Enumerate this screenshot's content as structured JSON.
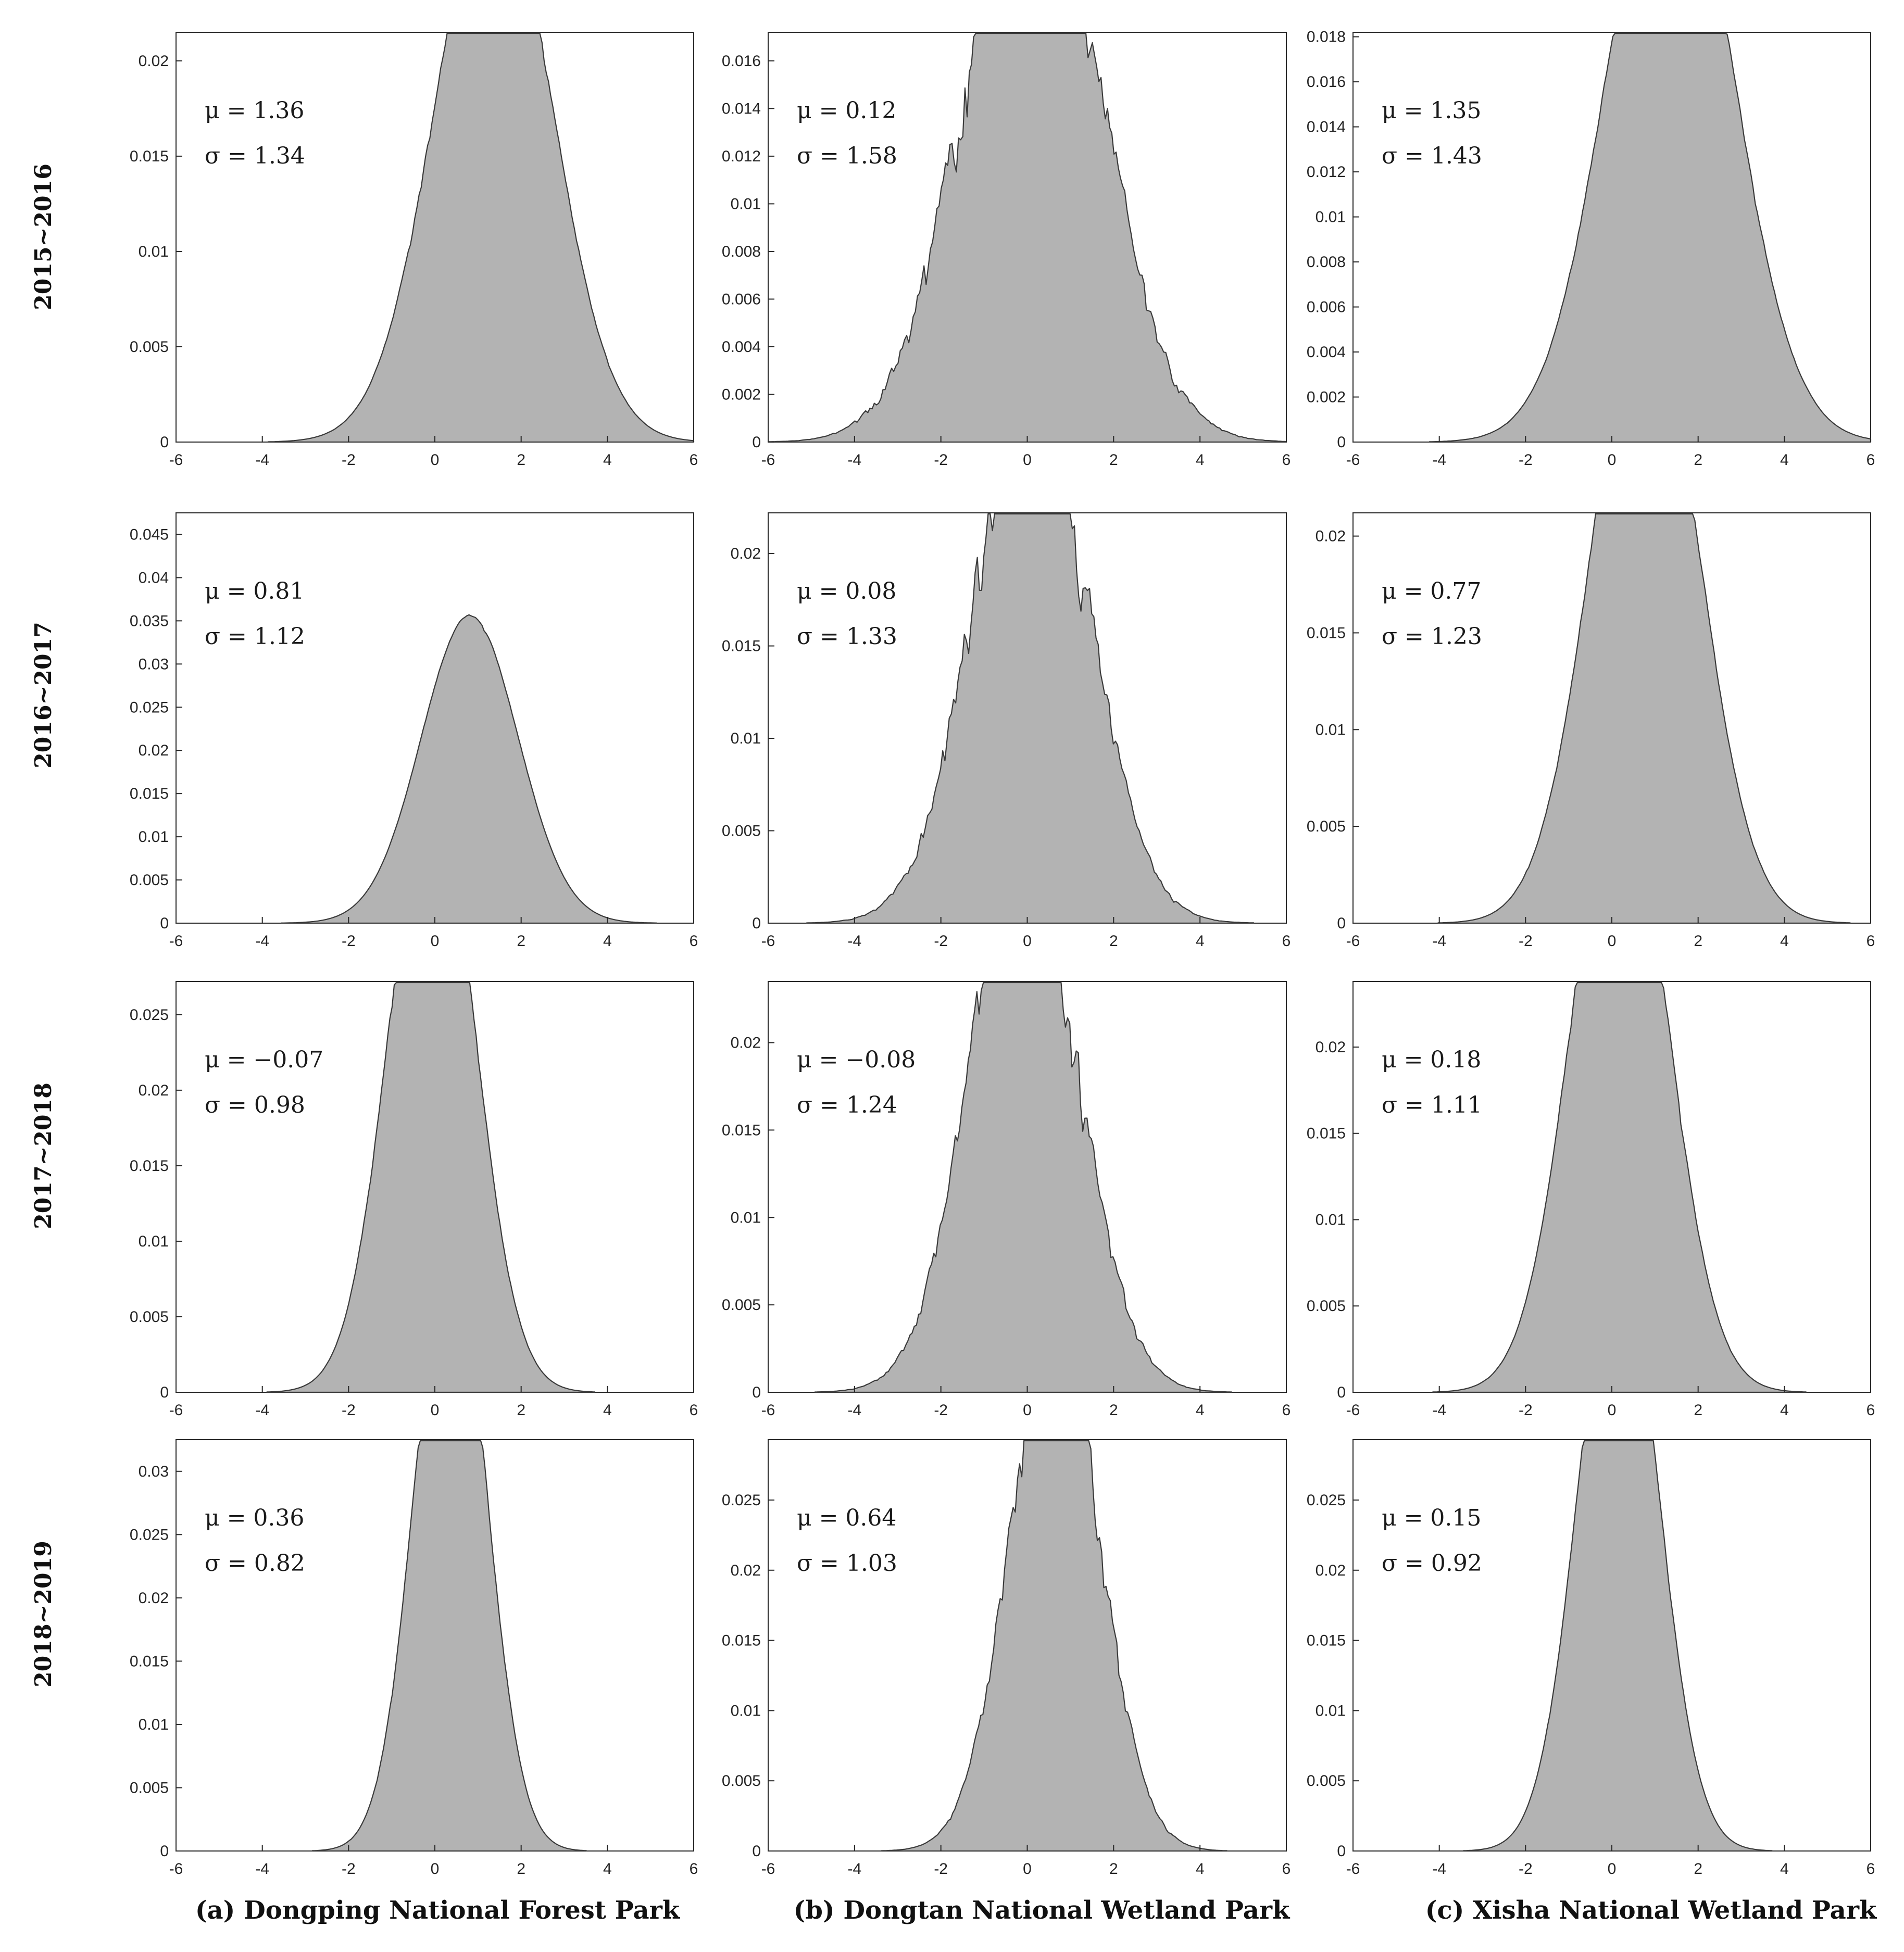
{
  "colors": {
    "fill": "#b3b3b3",
    "outline": "#3a3a3a",
    "axis": "#262626"
  },
  "figure": {
    "row_labels": [
      "2015~2016",
      "2016~2017",
      "2017~2018",
      "2018~2019"
    ],
    "column_captions": [
      "(a) Dongping National Forest Park",
      "(b) Dongtan National Wetland Park",
      "(c) Xisha National Wetland Park"
    ]
  },
  "chart_data": [
    {
      "type": "area",
      "row": 0,
      "col": 0,
      "mu": "1.36",
      "sigma": "1.34",
      "mean": 1.36,
      "sd": 1.34,
      "roughness": 0.012,
      "xlim": [
        -6,
        6
      ],
      "ylim": [
        0,
        0.0215
      ],
      "xticks": [
        "-6",
        "-4",
        "-2",
        "0",
        "2",
        "4",
        "6"
      ],
      "yticks": [
        {
          "v": 0,
          "t": "0"
        },
        {
          "v": 0.005,
          "t": "0.005"
        },
        {
          "v": 0.01,
          "t": "0.01"
        },
        {
          "v": 0.015,
          "t": "0.015"
        },
        {
          "v": 0.02,
          "t": "0.02"
        }
      ]
    },
    {
      "type": "area",
      "row": 0,
      "col": 1,
      "mu": "0.12",
      "sigma": "1.58",
      "mean": 0.12,
      "sd": 1.58,
      "roughness": 0.07,
      "xlim": [
        -6,
        6
      ],
      "ylim": [
        0,
        0.0172
      ],
      "xticks": [
        "-6",
        "-4",
        "-2",
        "0",
        "2",
        "4",
        "6"
      ],
      "yticks": [
        {
          "v": 0,
          "t": "0"
        },
        {
          "v": 0.002,
          "t": "0.002"
        },
        {
          "v": 0.004,
          "t": "0.004"
        },
        {
          "v": 0.006,
          "t": "0.006"
        },
        {
          "v": 0.008,
          "t": "0.008"
        },
        {
          "v": 0.01,
          "t": "0.01"
        },
        {
          "v": 0.012,
          "t": "0.012"
        },
        {
          "v": 0.014,
          "t": "0.014"
        },
        {
          "v": 0.016,
          "t": "0.016"
        }
      ]
    },
    {
      "type": "area",
      "row": 0,
      "col": 2,
      "mu": "1.35",
      "sigma": "1.43",
      "mean": 1.35,
      "sd": 1.43,
      "roughness": 0.012,
      "xlim": [
        -6,
        6
      ],
      "ylim": [
        0,
        0.0182
      ],
      "xticks": [
        "-6",
        "-4",
        "-2",
        "0",
        "2",
        "4",
        "6"
      ],
      "yticks": [
        {
          "v": 0,
          "t": "0"
        },
        {
          "v": 0.002,
          "t": "0.002"
        },
        {
          "v": 0.004,
          "t": "0.004"
        },
        {
          "v": 0.006,
          "t": "0.006"
        },
        {
          "v": 0.008,
          "t": "0.008"
        },
        {
          "v": 0.01,
          "t": "0.01"
        },
        {
          "v": 0.012,
          "t": "0.012"
        },
        {
          "v": 0.014,
          "t": "0.014"
        },
        {
          "v": 0.016,
          "t": "0.016"
        },
        {
          "v": 0.018,
          "t": "0.018"
        }
      ]
    },
    {
      "type": "area",
      "row": 1,
      "col": 0,
      "mu": "0.81",
      "sigma": "1.12",
      "mean": 0.81,
      "sd": 1.12,
      "roughness": 0.004,
      "xlim": [
        -6,
        6
      ],
      "ylim": [
        0,
        0.0475
      ],
      "xticks": [
        "-6",
        "-4",
        "-2",
        "0",
        "2",
        "4",
        "6"
      ],
      "yticks": [
        {
          "v": 0,
          "t": "0"
        },
        {
          "v": 0.005,
          "t": "0.005"
        },
        {
          "v": 0.01,
          "t": "0.01"
        },
        {
          "v": 0.015,
          "t": "0.015"
        },
        {
          "v": 0.02,
          "t": "0.02"
        },
        {
          "v": 0.025,
          "t": "0.025"
        },
        {
          "v": 0.03,
          "t": "0.03"
        },
        {
          "v": 0.035,
          "t": "0.035"
        },
        {
          "v": 0.04,
          "t": "0.04"
        },
        {
          "v": 0.045,
          "t": "0.045"
        }
      ]
    },
    {
      "type": "area",
      "row": 1,
      "col": 1,
      "mu": "0.08",
      "sigma": "1.33",
      "mean": 0.08,
      "sd": 1.33,
      "roughness": 0.06,
      "xlim": [
        -6,
        6
      ],
      "ylim": [
        0,
        0.0222
      ],
      "xticks": [
        "-6",
        "-4",
        "-2",
        "0",
        "2",
        "4",
        "6"
      ],
      "yticks": [
        {
          "v": 0,
          "t": "0"
        },
        {
          "v": 0.005,
          "t": "0.005"
        },
        {
          "v": 0.01,
          "t": "0.01"
        },
        {
          "v": 0.015,
          "t": "0.015"
        },
        {
          "v": 0.02,
          "t": "0.02"
        }
      ]
    },
    {
      "type": "area",
      "row": 1,
      "col": 2,
      "mu": "0.77",
      "sigma": "1.23",
      "mean": 0.77,
      "sd": 1.23,
      "roughness": 0.012,
      "xlim": [
        -6,
        6
      ],
      "ylim": [
        0,
        0.0212
      ],
      "xticks": [
        "-6",
        "-4",
        "-2",
        "0",
        "2",
        "4",
        "6"
      ],
      "yticks": [
        {
          "v": 0,
          "t": "0"
        },
        {
          "v": 0.005,
          "t": "0.005"
        },
        {
          "v": 0.01,
          "t": "0.01"
        },
        {
          "v": 0.015,
          "t": "0.015"
        },
        {
          "v": 0.02,
          "t": "0.02"
        }
      ]
    },
    {
      "type": "area",
      "row": 2,
      "col": 0,
      "mu": "−0.07",
      "sigma": "0.98",
      "mean": -0.07,
      "sd": 0.98,
      "roughness": 0.012,
      "xlim": [
        -6,
        6
      ],
      "ylim": [
        0,
        0.0272
      ],
      "xticks": [
        "-6",
        "-4",
        "-2",
        "0",
        "2",
        "4",
        "6"
      ],
      "yticks": [
        {
          "v": 0,
          "t": "0"
        },
        {
          "v": 0.005,
          "t": "0.005"
        },
        {
          "v": 0.01,
          "t": "0.01"
        },
        {
          "v": 0.015,
          "t": "0.015"
        },
        {
          "v": 0.02,
          "t": "0.02"
        },
        {
          "v": 0.025,
          "t": "0.025"
        }
      ]
    },
    {
      "type": "area",
      "row": 2,
      "col": 1,
      "mu": "−0.08",
      "sigma": "1.24",
      "mean": -0.08,
      "sd": 1.24,
      "roughness": 0.06,
      "xlim": [
        -6,
        6
      ],
      "ylim": [
        0,
        0.0235
      ],
      "xticks": [
        "-6",
        "-4",
        "-2",
        "0",
        "2",
        "4",
        "6"
      ],
      "yticks": [
        {
          "v": 0,
          "t": "0"
        },
        {
          "v": 0.005,
          "t": "0.005"
        },
        {
          "v": 0.01,
          "t": "0.01"
        },
        {
          "v": 0.015,
          "t": "0.015"
        },
        {
          "v": 0.02,
          "t": "0.02"
        }
      ]
    },
    {
      "type": "area",
      "row": 2,
      "col": 2,
      "mu": "0.18",
      "sigma": "1.11",
      "mean": 0.18,
      "sd": 1.11,
      "roughness": 0.012,
      "xlim": [
        -6,
        6
      ],
      "ylim": [
        0,
        0.0238
      ],
      "xticks": [
        "-6",
        "-4",
        "-2",
        "0",
        "2",
        "4",
        "6"
      ],
      "yticks": [
        {
          "v": 0,
          "t": "0"
        },
        {
          "v": 0.005,
          "t": "0.005"
        },
        {
          "v": 0.01,
          "t": "0.01"
        },
        {
          "v": 0.015,
          "t": "0.015"
        },
        {
          "v": 0.02,
          "t": "0.02"
        }
      ]
    },
    {
      "type": "area",
      "row": 3,
      "col": 0,
      "mu": "0.36",
      "sigma": "0.82",
      "mean": 0.36,
      "sd": 0.82,
      "roughness": 0.012,
      "xlim": [
        -6,
        6
      ],
      "ylim": [
        0,
        0.0325
      ],
      "xticks": [
        "-6",
        "-4",
        "-2",
        "0",
        "2",
        "4",
        "6"
      ],
      "yticks": [
        {
          "v": 0,
          "t": "0"
        },
        {
          "v": 0.005,
          "t": "0.005"
        },
        {
          "v": 0.01,
          "t": "0.01"
        },
        {
          "v": 0.015,
          "t": "0.015"
        },
        {
          "v": 0.02,
          "t": "0.02"
        },
        {
          "v": 0.025,
          "t": "0.025"
        },
        {
          "v": 0.03,
          "t": "0.03"
        }
      ]
    },
    {
      "type": "area",
      "row": 3,
      "col": 1,
      "mu": "0.64",
      "sigma": "1.03",
      "mean": 0.64,
      "sd": 1.03,
      "roughness": 0.05,
      "xlim": [
        -6,
        6
      ],
      "ylim": [
        0,
        0.0293
      ],
      "xticks": [
        "-6",
        "-4",
        "-2",
        "0",
        "2",
        "4",
        "6"
      ],
      "yticks": [
        {
          "v": 0,
          "t": "0"
        },
        {
          "v": 0.005,
          "t": "0.005"
        },
        {
          "v": 0.01,
          "t": "0.01"
        },
        {
          "v": 0.015,
          "t": "0.015"
        },
        {
          "v": 0.02,
          "t": "0.02"
        },
        {
          "v": 0.025,
          "t": "0.025"
        }
      ]
    },
    {
      "type": "area",
      "row": 3,
      "col": 2,
      "mu": "0.15",
      "sigma": "0.92",
      "mean": 0.15,
      "sd": 0.92,
      "roughness": 0.008,
      "xlim": [
        -6,
        6
      ],
      "ylim": [
        0,
        0.0293
      ],
      "xticks": [
        "-6",
        "-4",
        "-2",
        "0",
        "2",
        "4",
        "6"
      ],
      "yticks": [
        {
          "v": 0,
          "t": "0"
        },
        {
          "v": 0.005,
          "t": "0.005"
        },
        {
          "v": 0.01,
          "t": "0.01"
        },
        {
          "v": 0.015,
          "t": "0.015"
        },
        {
          "v": 0.02,
          "t": "0.02"
        },
        {
          "v": 0.025,
          "t": "0.025"
        }
      ]
    }
  ]
}
